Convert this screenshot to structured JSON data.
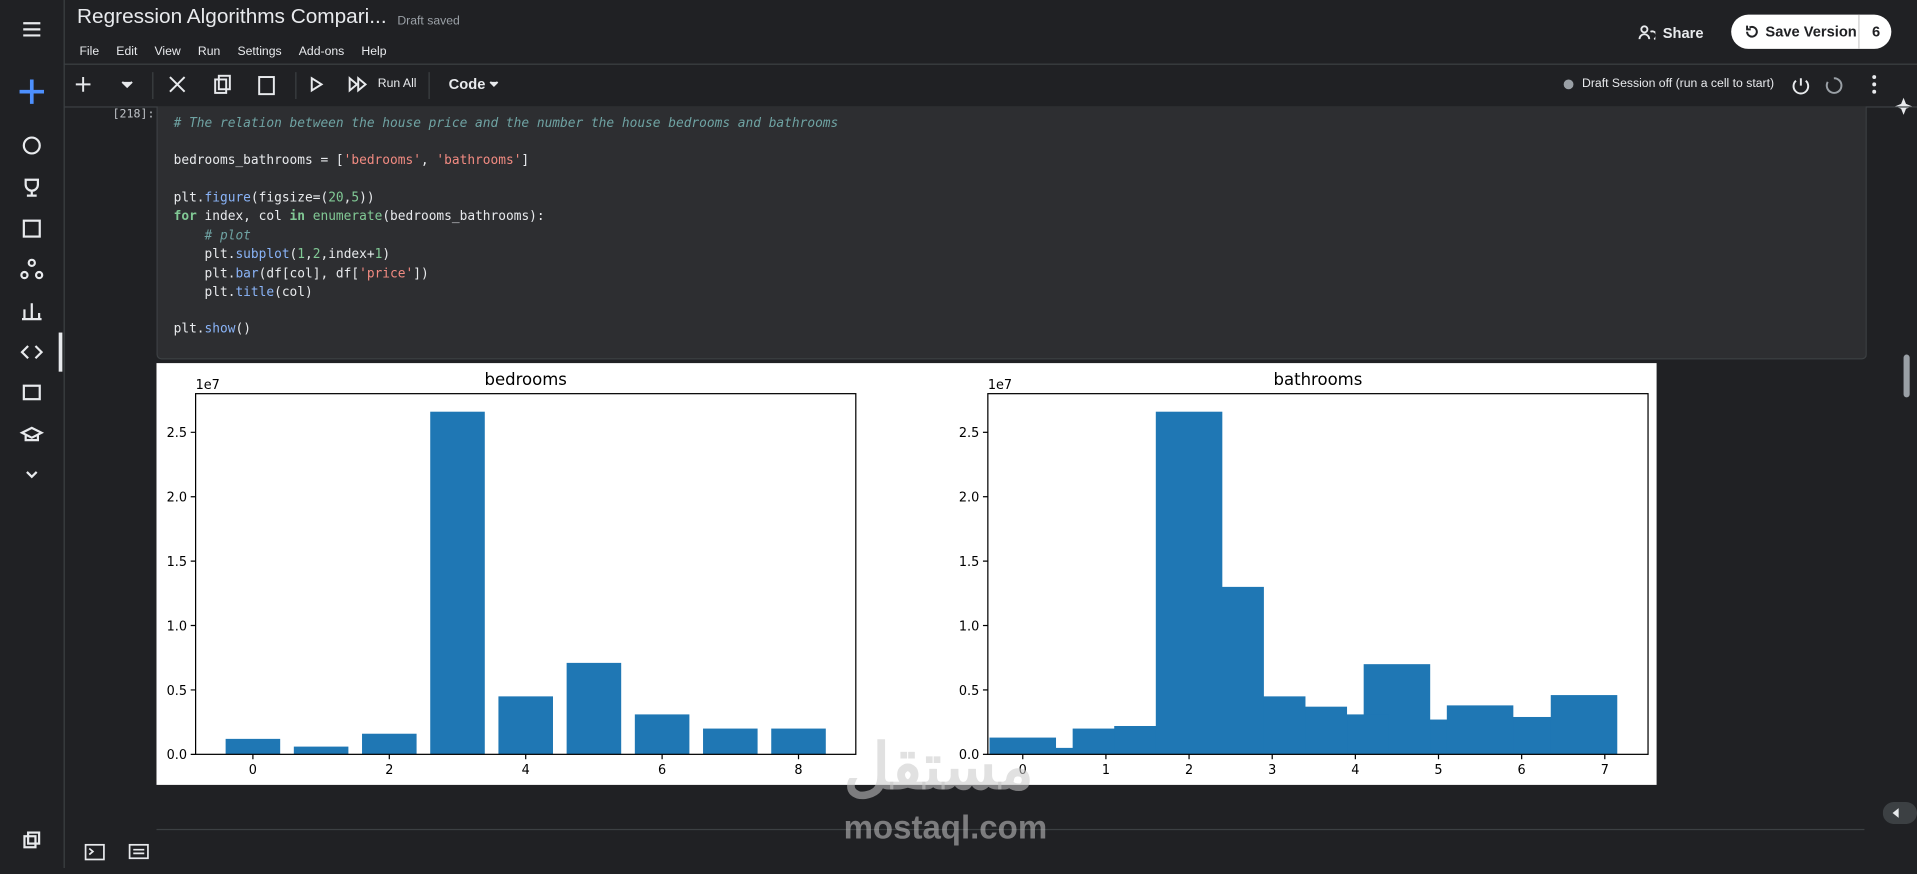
{
  "header": {
    "title": "Regression Algorithms Compari...",
    "status": "Draft saved",
    "menu": [
      "File",
      "Edit",
      "View",
      "Run",
      "Settings",
      "Add-ons",
      "Help"
    ],
    "share": "Share",
    "save_version": "Save Version",
    "version_count": "6"
  },
  "toolbar": {
    "run_all": "Run All",
    "cell_type": "Code",
    "session_status": "Draft Session off (run a cell to start)"
  },
  "cell": {
    "execution_count": "[218]:",
    "code": [
      "# The relation between the house price and the number the house bedrooms and bathrooms",
      "bedrooms_bathrooms = ['bedrooms', 'bathrooms']",
      "plt.figure(figsize=(20,5))",
      "for index, col in enumerate(bedrooms_bathrooms):",
      "    # plot",
      "    plt.subplot(1,2,index+1)",
      "    plt.bar(df[col], df['price'])",
      "    plt.title(col)",
      "plt.show()"
    ]
  },
  "watermark": {
    "logo": "مستقل",
    "site": "mostaql.com"
  },
  "chart_data": [
    {
      "type": "bar",
      "title": "bedrooms",
      "offset_label": "1e7",
      "color": "#1f77b4",
      "x": [
        0,
        1,
        2,
        3,
        4,
        5,
        6,
        7,
        8
      ],
      "values": [
        0.12,
        0.06,
        0.16,
        2.66,
        0.45,
        0.71,
        0.31,
        0.2,
        0.2
      ],
      "xlim": [
        -0.84,
        8.84
      ],
      "xticks": [
        0,
        2,
        4,
        6,
        8
      ],
      "ylim": [
        0,
        2.8
      ],
      "yticks": [
        {
          "value": 0,
          "label": "0.0"
        },
        {
          "value": 0.5,
          "label": "0.5"
        },
        {
          "value": 1,
          "label": "1.0"
        },
        {
          "value": 1.5,
          "label": "1.5"
        },
        {
          "value": 2,
          "label": "2.0"
        },
        {
          "value": 2.5,
          "label": "2.5"
        }
      ]
    },
    {
      "type": "bar",
      "title": "bathrooms",
      "offset_label": "1e7",
      "color": "#1f77b4",
      "x": [
        5,
        6,
        6.75,
        5.5,
        4.5,
        4,
        3.5,
        3,
        2.5,
        0.5,
        1,
        1.5,
        2,
        0
      ],
      "values": [
        0.27,
        0.29,
        0.46,
        0.38,
        0.7,
        0.31,
        0.37,
        0.45,
        1.3,
        0.05,
        0.2,
        0.22,
        2.66,
        0.13
      ],
      "xlim": [
        -0.42,
        7.52
      ],
      "xticks": [
        0,
        1,
        2,
        3,
        4,
        5,
        6,
        7
      ],
      "ylim": [
        0,
        2.8
      ],
      "yticks": [
        {
          "value": 0,
          "label": "0.0"
        },
        {
          "value": 0.5,
          "label": "0.5"
        },
        {
          "value": 1,
          "label": "1.0"
        },
        {
          "value": 1.5,
          "label": "1.5"
        },
        {
          "value": 2,
          "label": "2.0"
        },
        {
          "value": 2.5,
          "label": "2.5"
        }
      ]
    }
  ]
}
